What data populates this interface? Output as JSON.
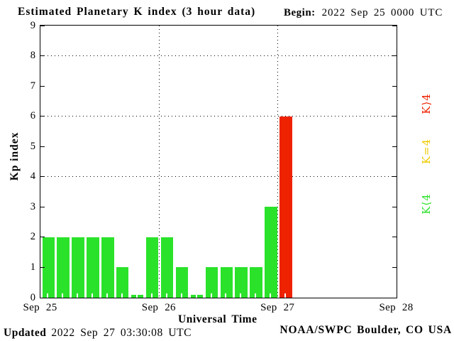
{
  "header": {
    "begin_label": "Begin:",
    "begin_value": "2022 Sep 25 0000 UTC"
  },
  "footer": {
    "updated_label": "Updated",
    "updated_value": "2022 Sep 27 03:30:08 UTC",
    "org": "NOAA/SWPC Boulder, CO USA"
  },
  "chart_data": {
    "type": "bar",
    "title": "Estimated Planetary K index (3 hour data)",
    "xlabel": "Universal Time",
    "ylabel": "Kp index",
    "ylim": [
      0,
      9
    ],
    "yticks": [
      0,
      1,
      2,
      3,
      4,
      5,
      6,
      7,
      8,
      9
    ],
    "grid_y": [
      4,
      6,
      8
    ],
    "grid": "dotted",
    "hours_per_bar": 3,
    "slots_per_day": 8,
    "total_slots": 24,
    "x_day_labels": [
      "Sep 25",
      "Sep 26",
      "Sep 27",
      "Sep 28"
    ],
    "values": [
      2,
      2,
      2,
      2,
      2,
      1,
      0,
      2,
      2,
      1,
      0,
      1,
      1,
      1,
      1,
      3,
      6
    ],
    "colors": {
      "k_lt_4": "#2be22b",
      "k_eq_4": "#eec900",
      "k_gt_4": "#ee2200",
      "axis": "#000000"
    },
    "legend": [
      {
        "label": "K⟩4",
        "color_key": "k_gt_4"
      },
      {
        "label": "K=4",
        "color_key": "k_eq_4"
      },
      {
        "label": "K⟨4",
        "color_key": "k_lt_4"
      }
    ],
    "legend_position": "right"
  }
}
